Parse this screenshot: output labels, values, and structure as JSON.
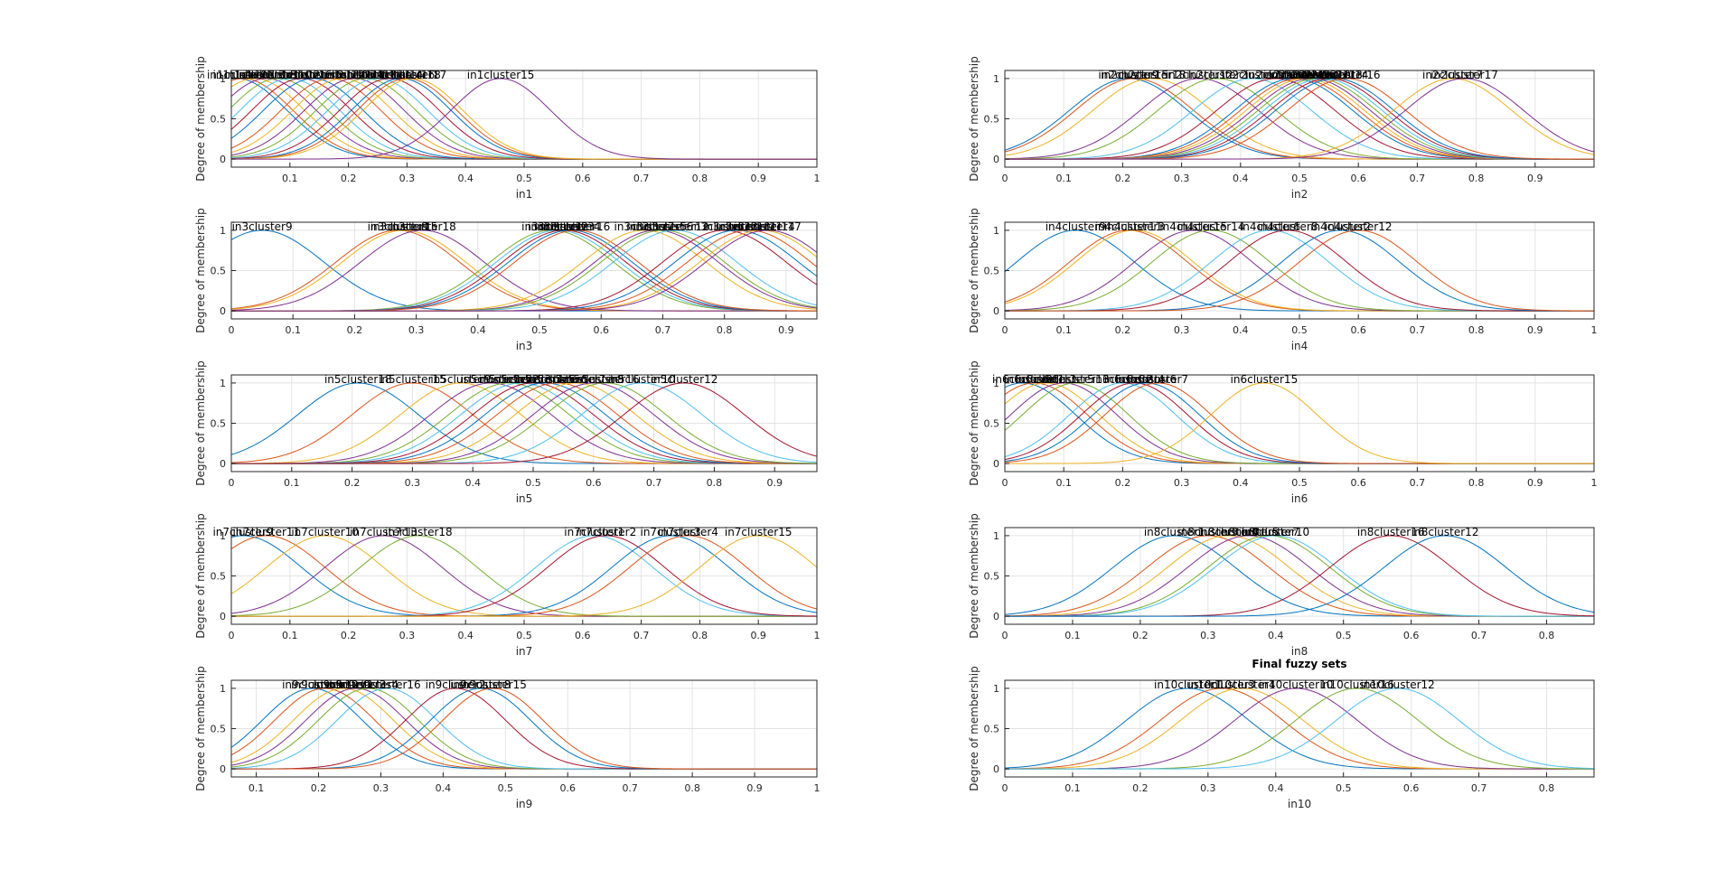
{
  "figure": {
    "title": "Final fuzzy sets",
    "ylabel": "Degree of membership",
    "grid": true
  },
  "colors": [
    "#0072BD",
    "#D95319",
    "#EDB120",
    "#7E2F8E",
    "#77AC30",
    "#4DBEEE",
    "#A2142F"
  ],
  "chart_data": [
    {
      "type": "line",
      "input": "in1",
      "xlabel": "in1",
      "ylabel": "Degree of membership",
      "xlim": [
        0,
        1
      ],
      "ylim": [
        -0.1,
        1.1
      ],
      "xticks": [
        0.1,
        0.2,
        0.3,
        0.4,
        0.5,
        0.6,
        0.7,
        0.8,
        0.9,
        1
      ],
      "yticks": [
        0,
        0.5,
        1
      ],
      "sigma": 0.085,
      "series": [
        {
          "name": "in1cluster9",
          "center": 0.01
        },
        {
          "name": "in1cluster1",
          "center": 0.02
        },
        {
          "name": "in1cluster3",
          "center": 0.04
        },
        {
          "name": "in1cluster5",
          "center": 0.06
        },
        {
          "name": "in1cluster10",
          "center": 0.08
        },
        {
          "name": "in1cluster2",
          "center": 0.1
        },
        {
          "name": "in1cluster6",
          "center": 0.12
        },
        {
          "name": "in1cluster8",
          "center": 0.14
        },
        {
          "name": "in1cluster12",
          "center": 0.17
        },
        {
          "name": "in1cluster13",
          "center": 0.19
        },
        {
          "name": "in1cluster4",
          "center": 0.21
        },
        {
          "name": "in1cluster7",
          "center": 0.23
        },
        {
          "name": "in1cluster11",
          "center": 0.25
        },
        {
          "name": "in1cluster14",
          "center": 0.27
        },
        {
          "name": "in1cluster16",
          "center": 0.29
        },
        {
          "name": "in1cluster18",
          "center": 0.3
        },
        {
          "name": "in1cluster17",
          "center": 0.31
        },
        {
          "name": "in1cluster15",
          "center": 0.46
        }
      ]
    },
    {
      "type": "line",
      "input": "in2",
      "xlabel": "in2",
      "ylabel": "Degree of membership",
      "xlim": [
        0,
        1
      ],
      "ylim": [
        -0.1,
        1.1
      ],
      "xticks": [
        0,
        0.1,
        0.2,
        0.3,
        0.4,
        0.5,
        0.6,
        0.7,
        0.8,
        0.9
      ],
      "yticks": [
        0,
        0.5,
        1
      ],
      "sigma": 0.1,
      "series": [
        {
          "name": "in2cluster9",
          "center": 0.21
        },
        {
          "name": "in2cluster15",
          "center": 0.22
        },
        {
          "name": "in2cluster18",
          "center": 0.25
        },
        {
          "name": "in2cluster12",
          "center": 0.33
        },
        {
          "name": "in2cluster2",
          "center": 0.36
        },
        {
          "name": "in2cluster1",
          "center": 0.42
        },
        {
          "name": "in2cluster3",
          "center": 0.46
        },
        {
          "name": "in2cluster4",
          "center": 0.49
        },
        {
          "name": "in2cluster5",
          "center": 0.5
        },
        {
          "name": "in2cluster6",
          "center": 0.51
        },
        {
          "name": "in2cluster8",
          "center": 0.52
        },
        {
          "name": "in2cluster10",
          "center": 0.53
        },
        {
          "name": "in2cluster11",
          "center": 0.54
        },
        {
          "name": "in2cluster13",
          "center": 0.55
        },
        {
          "name": "in2cluster14",
          "center": 0.56
        },
        {
          "name": "in2cluster16",
          "center": 0.58
        },
        {
          "name": "in2cluster7",
          "center": 0.76
        },
        {
          "name": "in2cluster17",
          "center": 0.78
        }
      ]
    },
    {
      "type": "line",
      "input": "in3",
      "xlabel": "in3",
      "ylabel": "Degree of membership",
      "xlim": [
        0,
        0.95
      ],
      "ylim": [
        -0.1,
        1.1
      ],
      "xticks": [
        0,
        0.1,
        0.2,
        0.3,
        0.4,
        0.5,
        0.6,
        0.7,
        0.8,
        0.9
      ],
      "yticks": [
        0,
        0.5,
        1
      ],
      "sigma": 0.1,
      "series": [
        {
          "name": "in3cluster9",
          "center": 0.05
        },
        {
          "name": "in3cluster8",
          "center": 0.27
        },
        {
          "name": "in3cluster15",
          "center": 0.28
        },
        {
          "name": "in3cluster18",
          "center": 0.31
        },
        {
          "name": "in3cluster1",
          "center": 0.52
        },
        {
          "name": "in3cluster2",
          "center": 0.53
        },
        {
          "name": "in3cluster3",
          "center": 0.54
        },
        {
          "name": "in3cluster4",
          "center": 0.55
        },
        {
          "name": "in3cluster16",
          "center": 0.56
        },
        {
          "name": "in3cluster7",
          "center": 0.67
        },
        {
          "name": "in3cluster5",
          "center": 0.69
        },
        {
          "name": "in3cluster6",
          "center": 0.7
        },
        {
          "name": "in3cluster12",
          "center": 0.72
        },
        {
          "name": "in3cluster13",
          "center": 0.8
        },
        {
          "name": "in3cluster10",
          "center": 0.82
        },
        {
          "name": "in3cluster11",
          "center": 0.84
        },
        {
          "name": "in3cluster14",
          "center": 0.86
        },
        {
          "name": "in3cluster17",
          "center": 0.87
        }
      ]
    },
    {
      "type": "line",
      "input": "in4",
      "xlabel": "in4",
      "ylabel": "Degree of membership",
      "xlim": [
        0,
        1
      ],
      "ylim": [
        -0.1,
        1.1
      ],
      "xticks": [
        0,
        0.1,
        0.2,
        0.3,
        0.4,
        0.5,
        0.6,
        0.7,
        0.8,
        0.9,
        1
      ],
      "yticks": [
        0,
        0.5,
        1
      ],
      "sigma": 0.1,
      "series": [
        {
          "name": "in4cluster9",
          "center": 0.12
        },
        {
          "name": "in4cluster11",
          "center": 0.21
        },
        {
          "name": "in4cluster3",
          "center": 0.22
        },
        {
          "name": "in4cluster15",
          "center": 0.32
        },
        {
          "name": "in4cluster14",
          "center": 0.35
        },
        {
          "name": "in4cluster6",
          "center": 0.45
        },
        {
          "name": "in4cluster8",
          "center": 0.48
        },
        {
          "name": "in4cluster2",
          "center": 0.57
        },
        {
          "name": "in4cluster12",
          "center": 0.6
        }
      ]
    },
    {
      "type": "line",
      "input": "in5",
      "xlabel": "in5",
      "ylabel": "Degree of membership",
      "xlim": [
        0,
        0.97
      ],
      "ylim": [
        -0.1,
        1.1
      ],
      "xticks": [
        0,
        0.1,
        0.2,
        0.3,
        0.4,
        0.5,
        0.6,
        0.7,
        0.8,
        0.9
      ],
      "yticks": [
        0,
        0.5,
        1
      ],
      "sigma": 0.1,
      "series": [
        {
          "name": "in5cluster18",
          "center": 0.21
        },
        {
          "name": "in5cluster15",
          "center": 0.3
        },
        {
          "name": "in5cluster9",
          "center": 0.38
        },
        {
          "name": "in5cluster1",
          "center": 0.43
        },
        {
          "name": "in5cluster2",
          "center": 0.46
        },
        {
          "name": "in5cluster3",
          "center": 0.48
        },
        {
          "name": "in5cluster4",
          "center": 0.5
        },
        {
          "name": "in5cluster5",
          "center": 0.52
        },
        {
          "name": "in5cluster6",
          "center": 0.54
        },
        {
          "name": "in5cluster7",
          "center": 0.57
        },
        {
          "name": "in5cluster8",
          "center": 0.6
        },
        {
          "name": "in5cluster16",
          "center": 0.62
        },
        {
          "name": "in5cluster10",
          "center": 0.68
        },
        {
          "name": "in5cluster12",
          "center": 0.75
        }
      ]
    },
    {
      "type": "line",
      "input": "in6",
      "xlabel": "in6",
      "ylabel": "Degree of membership",
      "xlim": [
        0,
        1
      ],
      "ylim": [
        -0.1,
        1.1
      ],
      "xticks": [
        0,
        0.1,
        0.2,
        0.3,
        0.4,
        0.5,
        0.6,
        0.7,
        0.8,
        0.9,
        1
      ],
      "yticks": [
        0,
        0.5,
        1
      ],
      "sigma": 0.09,
      "series": [
        {
          "name": "in6cluster9",
          "center": 0.03
        },
        {
          "name": "in6cluster1",
          "center": 0.05
        },
        {
          "name": "in6cluster3",
          "center": 0.07
        },
        {
          "name": "in6cluster5",
          "center": 0.1
        },
        {
          "name": "in6cluster13",
          "center": 0.12
        },
        {
          "name": "in6cluster2",
          "center": 0.2
        },
        {
          "name": "in6cluster4",
          "center": 0.22
        },
        {
          "name": "in6cluster6",
          "center": 0.24
        },
        {
          "name": "in6cluster7",
          "center": 0.26
        },
        {
          "name": "in6cluster15",
          "center": 0.44
        }
      ]
    },
    {
      "type": "line",
      "input": "in7",
      "xlabel": "in7",
      "ylabel": "Degree of membership",
      "xlim": [
        0,
        1
      ],
      "ylim": [
        -0.1,
        1.1
      ],
      "xticks": [
        0,
        0.1,
        0.2,
        0.3,
        0.4,
        0.5,
        0.6,
        0.7,
        0.8,
        0.9,
        1
      ],
      "yticks": [
        0,
        0.5,
        1
      ],
      "sigma": 0.1,
      "series": [
        {
          "name": "in7cluster9",
          "center": 0.02
        },
        {
          "name": "in7cluster11",
          "center": 0.06
        },
        {
          "name": "in7cluster10",
          "center": 0.16
        },
        {
          "name": "in7cluster13",
          "center": 0.26
        },
        {
          "name": "in7cluster18",
          "center": 0.32
        },
        {
          "name": "in7cluster1",
          "center": 0.62
        },
        {
          "name": "in7cluster2",
          "center": 0.64
        },
        {
          "name": "in7cluster3",
          "center": 0.75
        },
        {
          "name": "in7cluster4",
          "center": 0.78
        },
        {
          "name": "in7cluster15",
          "center": 0.9
        }
      ]
    },
    {
      "type": "line",
      "input": "in8",
      "xlabel": "in8",
      "ylabel": "Degree of membership",
      "xlim": [
        0,
        0.87
      ],
      "ylim": [
        -0.1,
        1.1
      ],
      "xticks": [
        0,
        0.1,
        0.2,
        0.3,
        0.4,
        0.5,
        0.6,
        0.7,
        0.8
      ],
      "yticks": [
        0,
        0.5,
        1
      ],
      "sigma": 0.09,
      "series": [
        {
          "name": "in8cluster1",
          "center": 0.25
        },
        {
          "name": "in8cluster3",
          "center": 0.3
        },
        {
          "name": "in8cluster4",
          "center": 0.33
        },
        {
          "name": "in8cluster5",
          "center": 0.36
        },
        {
          "name": "in8cluster7",
          "center": 0.39
        },
        {
          "name": "in8cluster10",
          "center": 0.4
        },
        {
          "name": "in8cluster16",
          "center": 0.57
        },
        {
          "name": "in8cluster12",
          "center": 0.65
        }
      ]
    },
    {
      "type": "line",
      "input": "in9",
      "xlabel": "in9",
      "ylabel": "Degree of membership",
      "xlim": [
        0.06,
        1
      ],
      "ylim": [
        -0.1,
        1.1
      ],
      "xticks": [
        0.1,
        0.2,
        0.3,
        0.4,
        0.5,
        0.6,
        0.7,
        0.8,
        0.9,
        1
      ],
      "yticks": [
        0,
        0.5,
        1
      ],
      "sigma": 0.08,
      "series": [
        {
          "name": "in9cluster5",
          "center": 0.19
        },
        {
          "name": "in9cluster12",
          "center": 0.21
        },
        {
          "name": "in9cluster1",
          "center": 0.24
        },
        {
          "name": "in9cluster3",
          "center": 0.26
        },
        {
          "name": "in9cluster4",
          "center": 0.28
        },
        {
          "name": "in9cluster16",
          "center": 0.31
        },
        {
          "name": "in9cluster2",
          "center": 0.42
        },
        {
          "name": "in9cluster8",
          "center": 0.46
        },
        {
          "name": "in9cluster15",
          "center": 0.48
        }
      ]
    },
    {
      "type": "line",
      "input": "in10",
      "xlabel": "in10",
      "ylabel": "Degree of membership",
      "title": "Final fuzzy sets",
      "xlim": [
        0,
        0.87
      ],
      "ylim": [
        -0.1,
        1.1
      ],
      "xticks": [
        0,
        0.1,
        0.2,
        0.3,
        0.4,
        0.5,
        0.6,
        0.7,
        0.8
      ],
      "yticks": [
        0,
        0.5,
        1
      ],
      "sigma": 0.09,
      "series": [
        {
          "name": "in10cluster1",
          "center": 0.27
        },
        {
          "name": "in10cluster3",
          "center": 0.32
        },
        {
          "name": "in10cluster4",
          "center": 0.35
        },
        {
          "name": "in10cluster10",
          "center": 0.43
        },
        {
          "name": "in10cluster16",
          "center": 0.52
        },
        {
          "name": "in10cluster12",
          "center": 0.58
        }
      ]
    }
  ]
}
